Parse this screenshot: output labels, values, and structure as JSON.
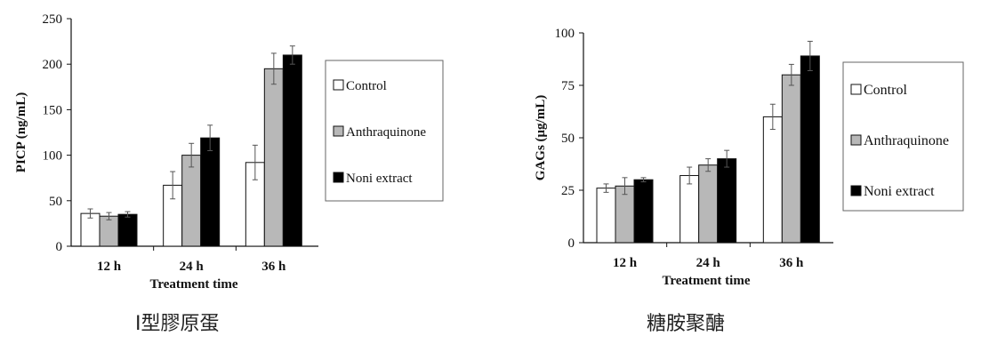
{
  "chart_data": [
    {
      "type": "bar",
      "title": "",
      "xlabel": "Treatment time",
      "ylabel": "PICP (ng/mL)",
      "categories": [
        "12 h",
        "24 h",
        "36 h"
      ],
      "ylim": [
        0,
        250
      ],
      "yticks": [
        0,
        50,
        100,
        150,
        200,
        250
      ],
      "legend_position": "right",
      "series": [
        {
          "name": "Control",
          "color": "#ffffff",
          "values": [
            36,
            67,
            92
          ],
          "errors": [
            5,
            15,
            19
          ]
        },
        {
          "name": "Anthraquinone",
          "color": "#b8b8b8",
          "values": [
            33,
            100,
            195
          ],
          "errors": [
            4,
            13,
            17
          ]
        },
        {
          "name": "Noni extract",
          "color": "#000000",
          "values": [
            35,
            119,
            210
          ],
          "errors": [
            3,
            14,
            10
          ]
        }
      ],
      "caption": "Ⅰ型膠原蛋"
    },
    {
      "type": "bar",
      "title": "",
      "xlabel": "Treatment time",
      "ylabel": "GAGs (μg/mL)",
      "categories": [
        "12 h",
        "24 h",
        "36 h"
      ],
      "ylim": [
        0,
        100
      ],
      "yticks": [
        0,
        25,
        50,
        75,
        100
      ],
      "legend_position": "right",
      "series": [
        {
          "name": "Control",
          "color": "#ffffff",
          "values": [
            26,
            32,
            60
          ],
          "errors": [
            2,
            4,
            6
          ]
        },
        {
          "name": "Anthraquinone",
          "color": "#b8b8b8",
          "values": [
            27,
            37,
            80
          ],
          "errors": [
            4,
            3,
            5
          ]
        },
        {
          "name": "Noni extract",
          "color": "#000000",
          "values": [
            30,
            40,
            89
          ],
          "errors": [
            1,
            4,
            7
          ]
        }
      ],
      "caption": "糖胺聚醣"
    }
  ]
}
